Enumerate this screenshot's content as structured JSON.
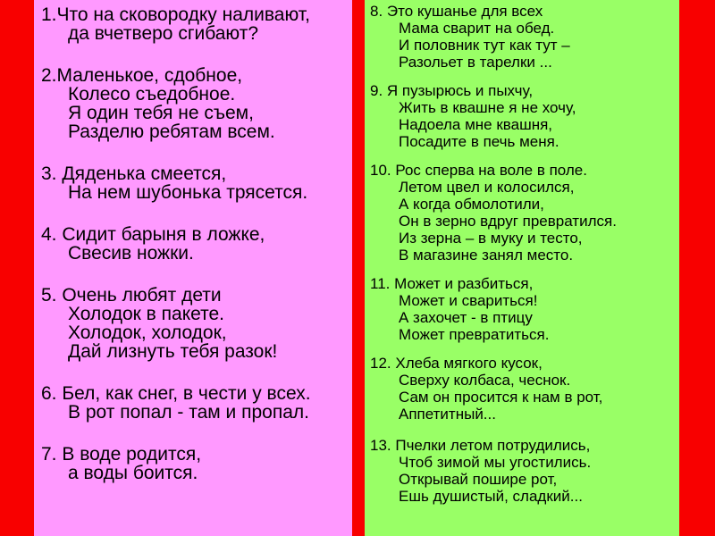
{
  "slide": {
    "colors": {
      "border": "#F80000",
      "left_bg": "#FF99FF",
      "right_bg": "#99FF66",
      "text": "#000000"
    },
    "left_panel": {
      "stanzas": [
        {
          "lines": [
            "1.Что на сковородку наливают,",
            "да вчетверо сгибают?"
          ]
        },
        {
          "lines": [
            "2.Маленькое, сдобное,",
            "Колесо съедобное.",
            "Я один тебя не съем,",
            "Разделю ребятам всем."
          ]
        },
        {
          "lines": [
            "3. Дяденька смеется,",
            "На нем шубонька трясется."
          ]
        },
        {
          "lines": [
            "4. Сидит барыня в ложке,",
            "Свесив ножки."
          ]
        },
        {
          "lines": [
            "5. Очень любят дети",
            "Холодок в пакете.",
            "Холодок, холодок,",
            "Дай лизнуть тебя разок!"
          ]
        },
        {
          "lines": [
            "6. Бел, как снег, в чести у всех.",
            "В рот попал - там и пропал."
          ]
        },
        {
          "lines": [
            "7. В воде родится,",
            "а воды боится."
          ]
        }
      ]
    },
    "right_panel": {
      "stanzas": [
        {
          "lines": [
            "8. Это кушанье для всех",
            "Мама сварит на обед.",
            "И половник тут как тут –",
            "Разольет в тарелки ..."
          ]
        },
        {
          "lines": [
            "9. Я пузырюсь и пыхчу,",
            "Жить в квашне я не хочу,",
            "Надоела мне квашня,",
            "Посадите в печь меня."
          ]
        },
        {
          "lines": [
            "10. Рос сперва на воле в поле.",
            "Летом цвел и колосился,",
            "А когда обмолотили,",
            "Он в зерно вдруг превратился.",
            "Из зерна – в муку и тесто,",
            "В магазине занял место."
          ]
        },
        {
          "lines": [
            "11. Может и разбиться,",
            "Может и свариться!",
            "А захочет - в птицу",
            "Может превратиться."
          ]
        },
        {
          "lines": [
            "12. Хлеба мягкого кусок,",
            "Сверху колбаса, чеснок.",
            "Сам он просится к нам в рот,",
            "Аппетитный..."
          ]
        },
        {
          "lines": [
            "13. Пчелки летом потрудились,",
            "Чтоб зимой мы угостились.",
            "Открывай пошире рот,",
            "Ешь душистый, сладкий..."
          ]
        }
      ]
    }
  }
}
